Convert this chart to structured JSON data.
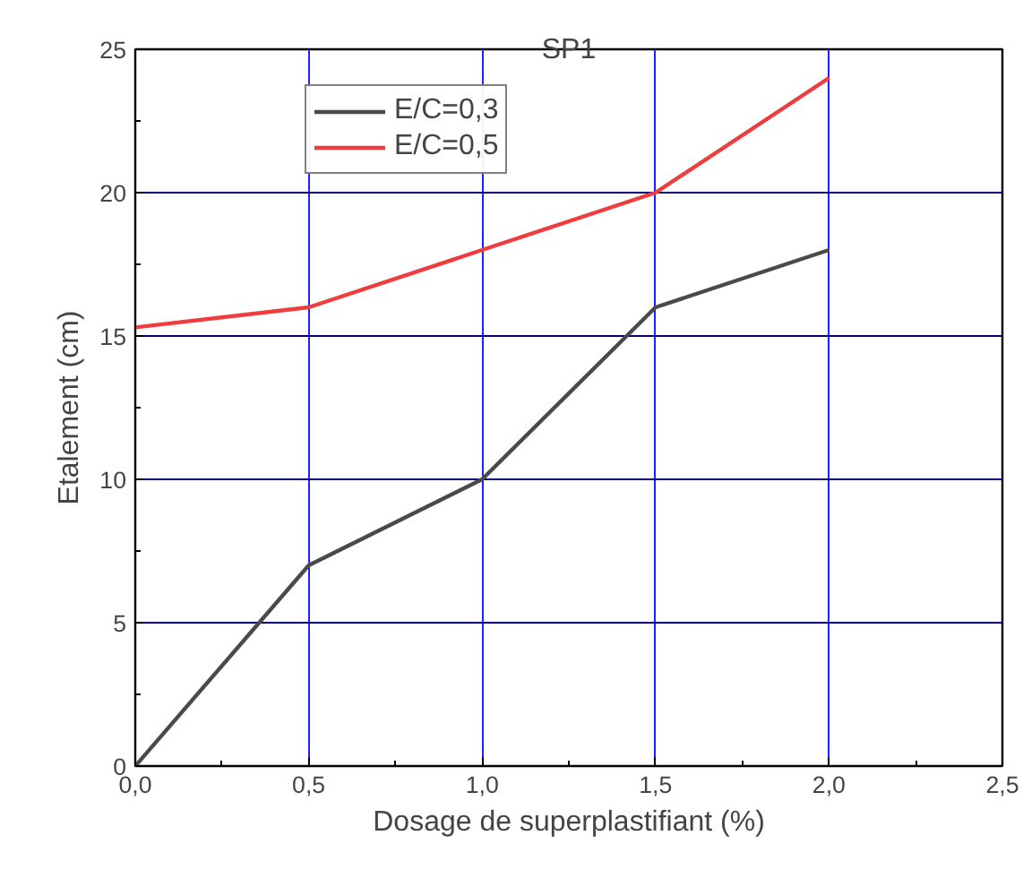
{
  "chart_data": {
    "type": "line",
    "title": "SP1",
    "xlabel": "Dosage de superplastifiant (%)",
    "ylabel": "Etalement (cm)",
    "x": [
      0,
      0.5,
      1.0,
      1.5,
      2.0
    ],
    "series": [
      {
        "name": "E/C=0,3",
        "color": "#4a4a4a",
        "values": [
          0,
          7,
          10,
          16,
          18
        ]
      },
      {
        "name": "E/C=0,5",
        "color": "#f03c3c",
        "values": [
          15.3,
          16,
          18,
          20,
          24
        ]
      }
    ],
    "xlim": [
      0,
      2.5
    ],
    "ylim": [
      0,
      25
    ],
    "xticks": [
      {
        "value": 0,
        "label": "0,0"
      },
      {
        "value": 0.5,
        "label": "0,5"
      },
      {
        "value": 1.0,
        "label": "1,0"
      },
      {
        "value": 1.5,
        "label": "1,5"
      },
      {
        "value": 2.0,
        "label": "2,0"
      },
      {
        "value": 2.5,
        "label": "2,5"
      }
    ],
    "yticks": [
      0,
      5,
      10,
      15,
      20,
      25
    ],
    "grid": true,
    "legend": "top left",
    "marker": "none",
    "line_style": "solid"
  }
}
